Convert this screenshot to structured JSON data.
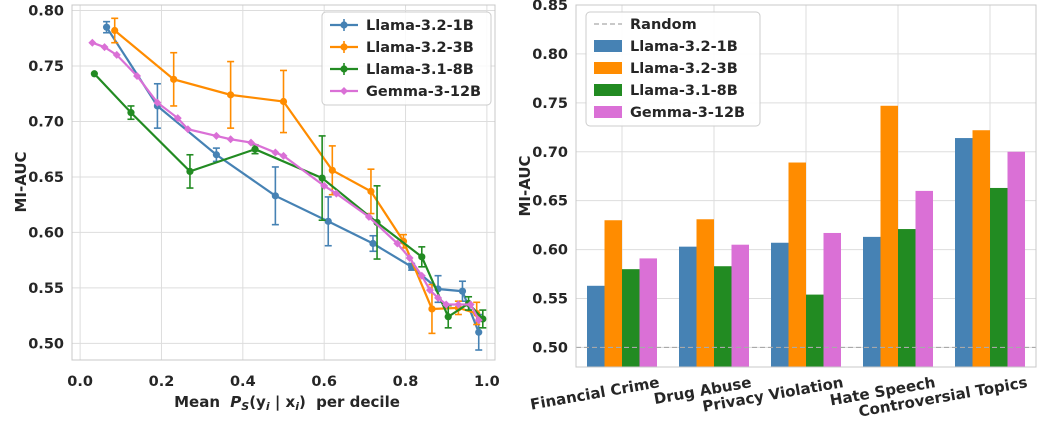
{
  "colors": {
    "Llama-3.2-1B": "#4682b4",
    "Llama-3.2-3B": "#ff8c00",
    "Llama-3.1-8B": "#228b22",
    "Gemma-3-12B": "#da70d6",
    "Random": "#a9a9a9"
  },
  "chart_data": [
    {
      "type": "line",
      "xlabel": "Mean",
      "xlabel_math": "P",
      "xlabel_math_sub": "S",
      "xlabel_paren": "(y",
      "xlabel_y_sub": "i",
      "xlabel_bar": " | x",
      "xlabel_x_sub": "i",
      "xlabel_close": ")",
      "xlabel_suffix": "per decile",
      "ylabel": "MI-AUC",
      "xlim": [
        -0.02,
        1.02
      ],
      "ylim": [
        0.485,
        0.805
      ],
      "xticks": [
        "0.0",
        "0.2",
        "0.4",
        "0.6",
        "0.8",
        "1.0"
      ],
      "yticks": [
        "0.50",
        "0.55",
        "0.60",
        "0.65",
        "0.70",
        "0.75",
        "0.80"
      ],
      "grid": true,
      "legend_position": "top-right",
      "series": [
        {
          "name": "Llama-3.2-1B",
          "points": [
            {
              "x": 0.065,
              "y": 0.785,
              "err": 0.005
            },
            {
              "x": 0.19,
              "y": 0.714,
              "err": 0.02
            },
            {
              "x": 0.335,
              "y": 0.67,
              "err": 0.006
            },
            {
              "x": 0.48,
              "y": 0.633,
              "err": 0.026
            },
            {
              "x": 0.61,
              "y": 0.61,
              "err": 0.022
            },
            {
              "x": 0.72,
              "y": 0.59,
              "err": 0.007
            },
            {
              "x": 0.815,
              "y": 0.569,
              "err": 0.003
            },
            {
              "x": 0.88,
              "y": 0.549,
              "err": 0.012
            },
            {
              "x": 0.94,
              "y": 0.547,
              "err": 0.009
            },
            {
              "x": 0.98,
              "y": 0.51,
              "err": 0.016
            }
          ]
        },
        {
          "name": "Llama-3.2-3B",
          "points": [
            {
              "x": 0.085,
              "y": 0.782,
              "err": 0.011
            },
            {
              "x": 0.23,
              "y": 0.738,
              "err": 0.024
            },
            {
              "x": 0.37,
              "y": 0.724,
              "err": 0.03
            },
            {
              "x": 0.5,
              "y": 0.718,
              "err": 0.028
            },
            {
              "x": 0.62,
              "y": 0.656,
              "err": 0.022
            },
            {
              "x": 0.715,
              "y": 0.637,
              "err": 0.02
            },
            {
              "x": 0.795,
              "y": 0.592,
              "err": 0.006
            },
            {
              "x": 0.865,
              "y": 0.531,
              "err": 0.022
            },
            {
              "x": 0.93,
              "y": 0.532,
              "err": 0.006
            },
            {
              "x": 0.975,
              "y": 0.527,
              "err": 0.01
            }
          ]
        },
        {
          "name": "Llama-3.1-8B",
          "points": [
            {
              "x": 0.035,
              "y": 0.743,
              "err": 0
            },
            {
              "x": 0.125,
              "y": 0.708,
              "err": 0.006
            },
            {
              "x": 0.27,
              "y": 0.655,
              "err": 0.015
            },
            {
              "x": 0.43,
              "y": 0.675,
              "err": 0.004
            },
            {
              "x": 0.595,
              "y": 0.649,
              "err": 0.038
            },
            {
              "x": 0.73,
              "y": 0.609,
              "err": 0.033
            },
            {
              "x": 0.84,
              "y": 0.578,
              "err": 0.009
            },
            {
              "x": 0.905,
              "y": 0.524,
              "err": 0.01
            },
            {
              "x": 0.955,
              "y": 0.536,
              "err": 0.006
            },
            {
              "x": 0.99,
              "y": 0.522,
              "err": 0.008
            }
          ]
        },
        {
          "name": "Gemma-3-12B",
          "points": [
            {
              "x": 0.03,
              "y": 0.771,
              "err": 0
            },
            {
              "x": 0.06,
              "y": 0.767,
              "err": 0
            },
            {
              "x": 0.09,
              "y": 0.76,
              "err": 0
            },
            {
              "x": 0.14,
              "y": 0.741,
              "err": 0
            },
            {
              "x": 0.19,
              "y": 0.717,
              "err": 0
            },
            {
              "x": 0.24,
              "y": 0.703,
              "err": 0
            },
            {
              "x": 0.265,
              "y": 0.693,
              "err": 0
            },
            {
              "x": 0.335,
              "y": 0.687,
              "err": 0
            },
            {
              "x": 0.37,
              "y": 0.684,
              "err": 0
            },
            {
              "x": 0.42,
              "y": 0.681,
              "err": 0
            },
            {
              "x": 0.48,
              "y": 0.672,
              "err": 0
            },
            {
              "x": 0.5,
              "y": 0.669,
              "err": 0
            },
            {
              "x": 0.6,
              "y": 0.642,
              "err": 0
            },
            {
              "x": 0.63,
              "y": 0.635,
              "err": 0
            },
            {
              "x": 0.71,
              "y": 0.614,
              "err": 0
            },
            {
              "x": 0.78,
              "y": 0.59,
              "err": 0
            },
            {
              "x": 0.81,
              "y": 0.577,
              "err": 0
            },
            {
              "x": 0.84,
              "y": 0.561,
              "err": 0
            },
            {
              "x": 0.86,
              "y": 0.548,
              "err": 0
            },
            {
              "x": 0.88,
              "y": 0.541,
              "err": 0
            },
            {
              "x": 0.9,
              "y": 0.535,
              "err": 0
            },
            {
              "x": 0.93,
              "y": 0.535,
              "err": 0
            },
            {
              "x": 0.96,
              "y": 0.535,
              "err": 0
            },
            {
              "x": 0.98,
              "y": 0.521,
              "err": 0
            }
          ]
        }
      ]
    },
    {
      "type": "bar",
      "ylabel": "MI-AUC",
      "ylim": [
        0.48,
        0.85
      ],
      "yticks": [
        "0.50",
        "0.55",
        "0.60",
        "0.65",
        "0.70",
        "0.75",
        "0.80",
        "0.85"
      ],
      "grid": true,
      "legend_position": "top-left",
      "baseline": {
        "name": "Random",
        "value": 0.5
      },
      "categories": [
        "Financial Crime",
        "Drug Abuse",
        "Privacy Violation",
        "Hate Speech",
        "Controversial Topics"
      ],
      "series": [
        {
          "name": "Llama-3.2-1B",
          "values": [
            0.563,
            0.603,
            0.607,
            0.613,
            0.714
          ]
        },
        {
          "name": "Llama-3.2-3B",
          "values": [
            0.63,
            0.631,
            0.689,
            0.747,
            0.722
          ]
        },
        {
          "name": "Llama-3.1-8B",
          "values": [
            0.58,
            0.583,
            0.554,
            0.621,
            0.663
          ]
        },
        {
          "name": "Gemma-3-12B",
          "values": [
            0.591,
            0.605,
            0.617,
            0.66,
            0.7
          ]
        }
      ]
    }
  ]
}
